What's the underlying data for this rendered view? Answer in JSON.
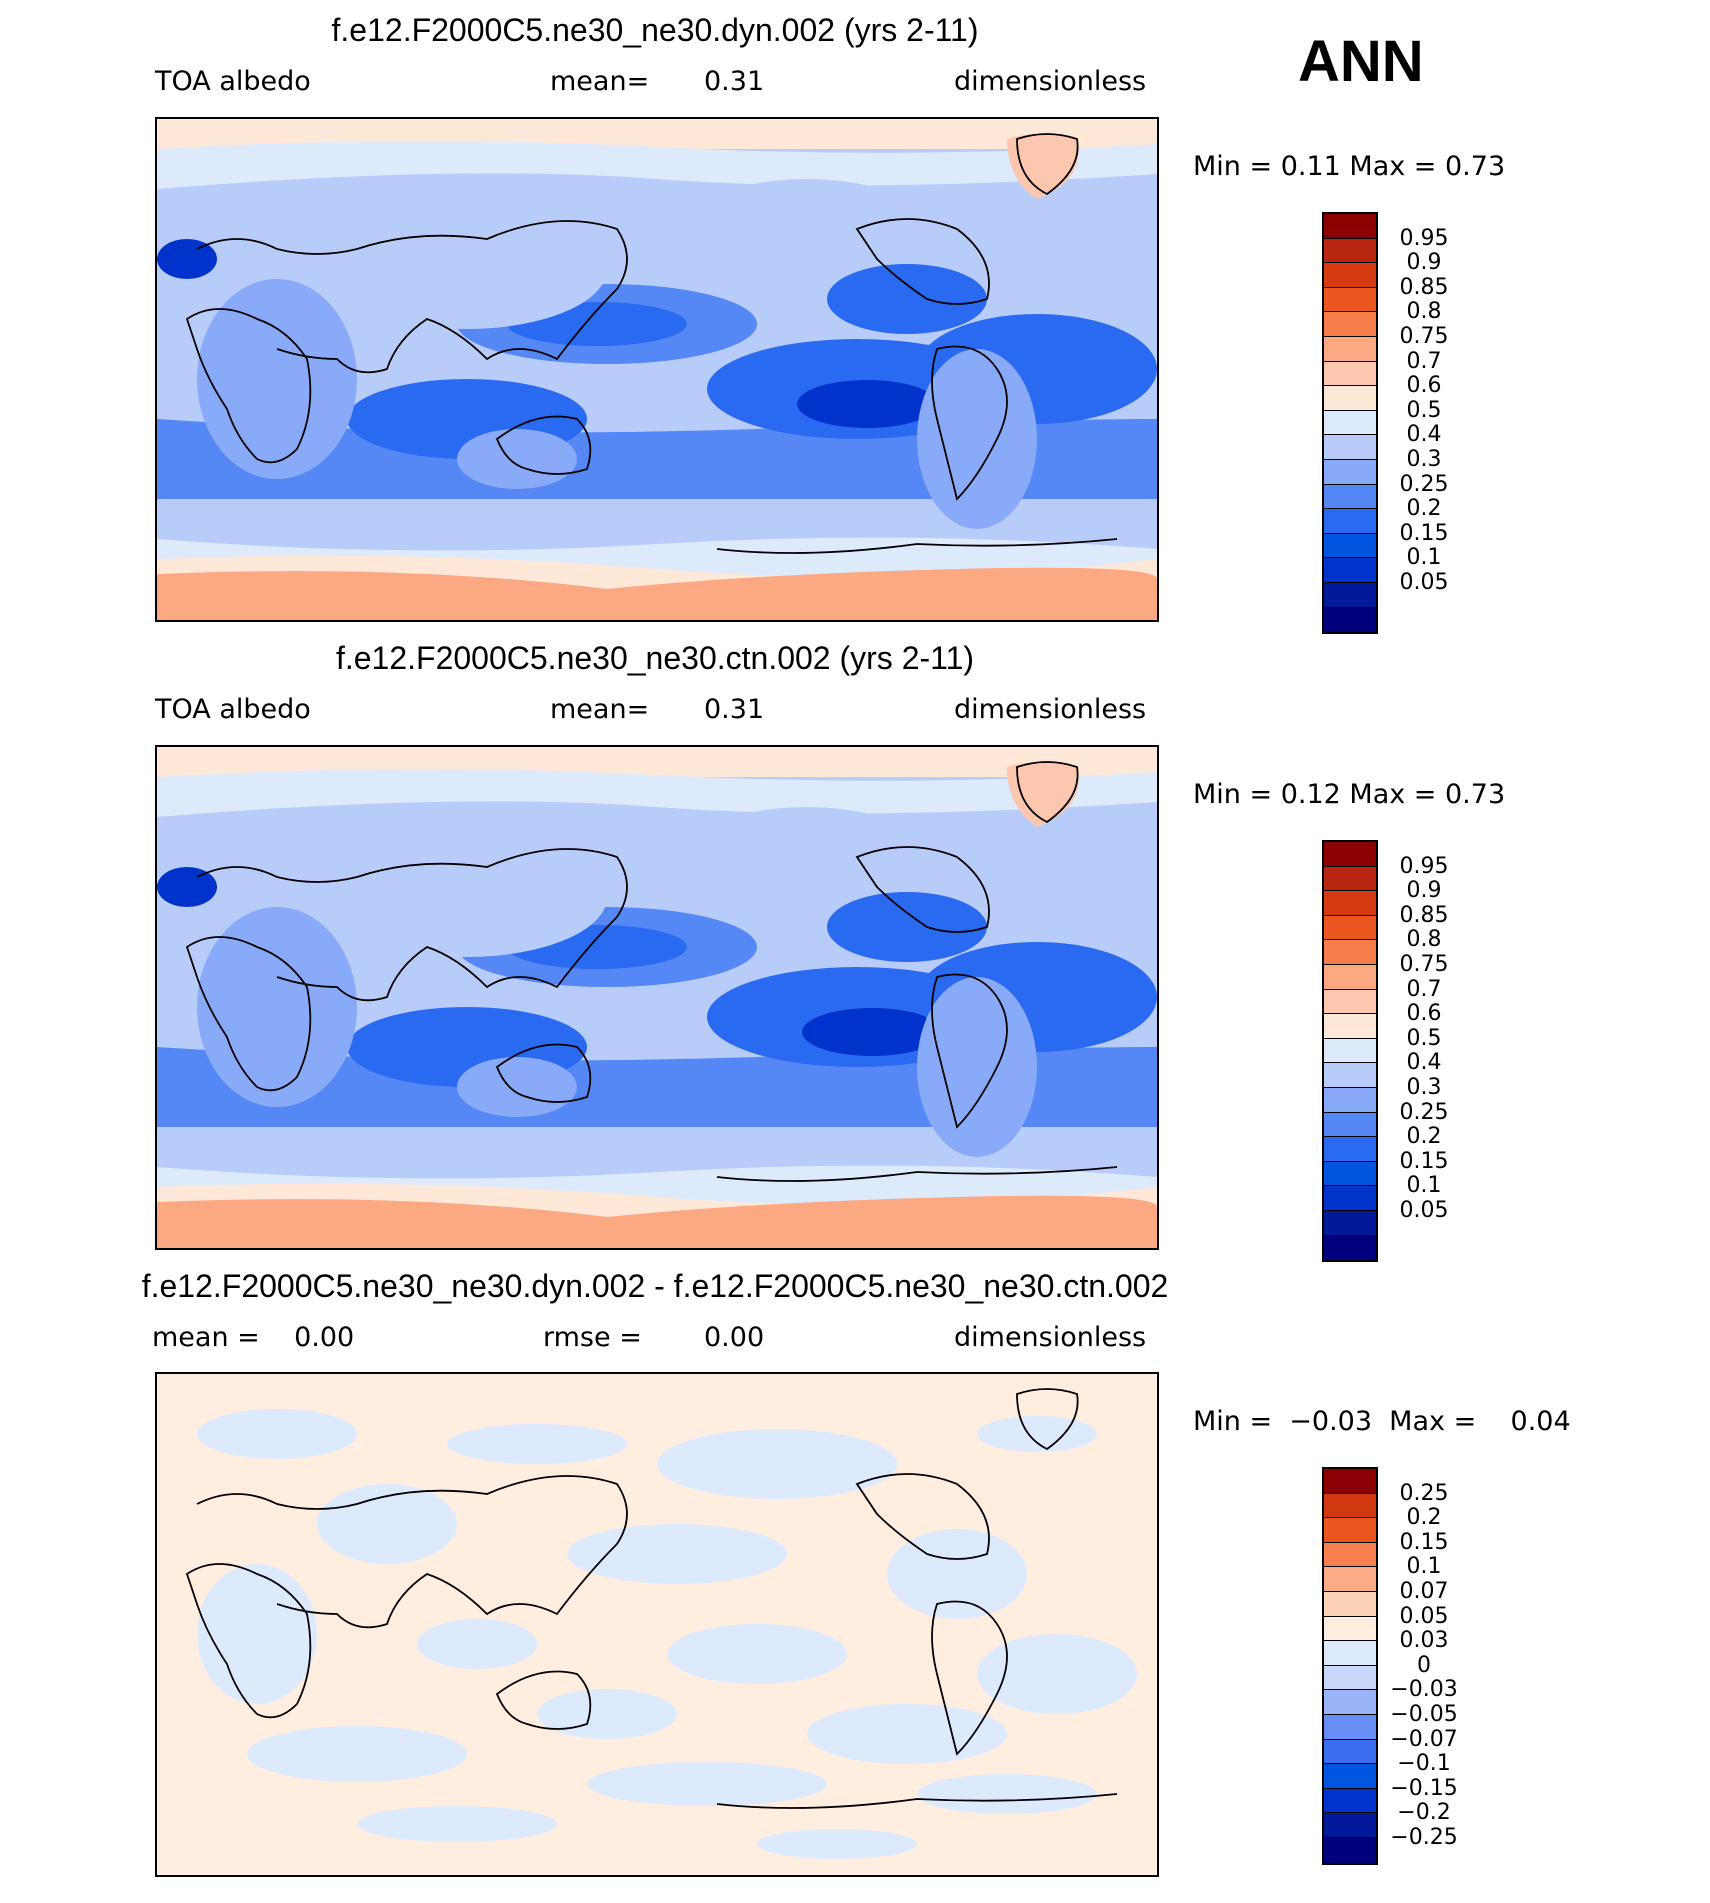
{
  "season": "ANN",
  "palette": {
    "abs": [
      "#00007f",
      "#001a99",
      "#0033cc",
      "#0055e0",
      "#2a6af0",
      "#5588f5",
      "#88aaf8",
      "#b8ccfa",
      "#ddeafc",
      "#ffe8d8",
      "#fcc7ae",
      "#fca882",
      "#f77e4a",
      "#ea5520",
      "#d53a10",
      "#b82510",
      "#8b0000"
    ],
    "diff": [
      "#00007f",
      "#001a99",
      "#0033cc",
      "#0055e0",
      "#3a6df0",
      "#6690f6",
      "#9ab4f8",
      "#c8d8fb",
      "#dde9fc",
      "#ffeee0",
      "#fcd2b8",
      "#fbab85",
      "#f78050",
      "#ea5520",
      "#d13a10",
      "#8b0000"
    ]
  },
  "panels": [
    {
      "title": "f.e12.F2000C5.ne30_ne30.dyn.002 (yrs 2-11)",
      "left": "TOA albedo",
      "mid_label": "mean=",
      "mid_value": "0.31",
      "units": "dimensionless",
      "minmax": "Min =    0.11  Max =    0.73",
      "cbar_labels": [
        "0.95",
        "0.9",
        "0.85",
        "0.8",
        "0.75",
        "0.7",
        "0.6",
        "0.5",
        "0.4",
        "0.3",
        "0.25",
        "0.2",
        "0.15",
        "0.1",
        "0.05"
      ],
      "kind": "abs"
    },
    {
      "title": "f.e12.F2000C5.ne30_ne30.ctn.002 (yrs 2-11)",
      "left": "TOA albedo",
      "mid_label": "mean=",
      "mid_value": "0.31",
      "units": "dimensionless",
      "minmax": "Min =    0.12  Max =    0.73",
      "cbar_labels": [
        "0.95",
        "0.9",
        "0.85",
        "0.8",
        "0.75",
        "0.7",
        "0.6",
        "0.5",
        "0.4",
        "0.3",
        "0.25",
        "0.2",
        "0.15",
        "0.1",
        "0.05"
      ],
      "kind": "abs"
    },
    {
      "title": "f.e12.F2000C5.ne30_ne30.dyn.002 - f.e12.F2000C5.ne30_ne30.ctn.002",
      "left": "mean =    0.00",
      "mid_label": "rmse =",
      "mid_value": "0.00",
      "units": "dimensionless",
      "minmax": "Min =  −0.03  Max =    0.04",
      "cbar_labels": [
        "0.25",
        "0.2",
        "0.15",
        "0.1",
        "0.07",
        "0.05",
        "0.03",
        "0",
        "−0.03",
        "−0.05",
        "−0.07",
        "−0.1",
        "−0.15",
        "−0.2",
        "−0.25"
      ],
      "kind": "diff"
    }
  ],
  "chart_data": [
    {
      "type": "heatmap",
      "title": "f.e12.F2000C5.ne30_ne30.dyn.002 (yrs 2-11)",
      "variable": "TOA albedo",
      "units": "dimensionless",
      "mean": 0.31,
      "min": 0.11,
      "max": 0.73,
      "levels": [
        0.05,
        0.1,
        0.15,
        0.2,
        0.25,
        0.3,
        0.4,
        0.5,
        0.6,
        0.7,
        0.75,
        0.8,
        0.85,
        0.9,
        0.95
      ]
    },
    {
      "type": "heatmap",
      "title": "f.e12.F2000C5.ne30_ne30.ctn.002 (yrs 2-11)",
      "variable": "TOA albedo",
      "units": "dimensionless",
      "mean": 0.31,
      "min": 0.12,
      "max": 0.73,
      "levels": [
        0.05,
        0.1,
        0.15,
        0.2,
        0.25,
        0.3,
        0.4,
        0.5,
        0.6,
        0.7,
        0.75,
        0.8,
        0.85,
        0.9,
        0.95
      ]
    },
    {
      "type": "heatmap",
      "title": "f.e12.F2000C5.ne30_ne30.dyn.002 - f.e12.F2000C5.ne30_ne30.ctn.002",
      "units": "dimensionless",
      "mean": 0.0,
      "rmse": 0.0,
      "min": -0.03,
      "max": 0.04,
      "levels": [
        -0.25,
        -0.2,
        -0.15,
        -0.1,
        -0.07,
        -0.05,
        -0.03,
        0,
        0.03,
        0.05,
        0.07,
        0.1,
        0.15,
        0.2,
        0.25
      ]
    }
  ]
}
